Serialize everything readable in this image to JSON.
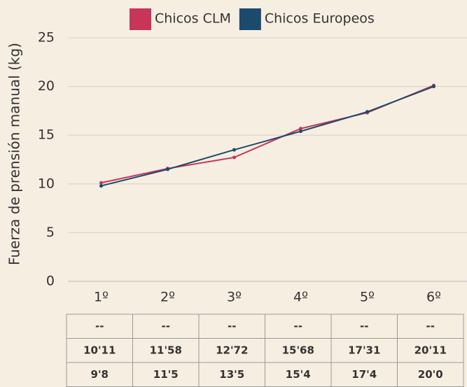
{
  "chart_data": {
    "type": "line",
    "categories": [
      "1º",
      "2º",
      "3º",
      "4º",
      "5º",
      "6º"
    ],
    "series": [
      {
        "name": "Chicos CLM",
        "color": "#c73559",
        "values": [
          10.11,
          11.58,
          12.72,
          15.68,
          17.31,
          20.11
        ],
        "value_labels": [
          "10'11",
          "11'58",
          "12'72",
          "15'68",
          "17'31",
          "20'11"
        ]
      },
      {
        "name": "Chicos Europeos",
        "color": "#1c4a6c",
        "values": [
          9.8,
          11.5,
          13.5,
          15.4,
          17.4,
          20.0
        ],
        "value_labels": [
          "9'8",
          "11'5",
          "13'5",
          "15'4",
          "17'4",
          "20'0"
        ]
      }
    ],
    "extra_row": [
      "--",
      "--",
      "--",
      "--",
      "--",
      "--"
    ],
    "extra_row_color": "#f0a52e",
    "ylabel": "Fuerza de prensión manual (kg)",
    "ylim": [
      0,
      25
    ],
    "yticks": [
      0,
      5,
      10,
      15,
      20,
      25
    ],
    "grid": true,
    "legend": "top"
  }
}
